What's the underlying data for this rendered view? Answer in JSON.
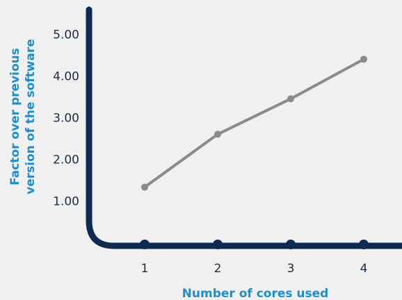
{
  "chart_data": {
    "type": "line",
    "x": [
      1,
      2,
      3,
      4
    ],
    "x_tick_labels": [
      "1",
      "2",
      "3",
      "4"
    ],
    "series": [
      {
        "values": [
          1.35,
          2.62,
          3.47,
          4.42
        ]
      }
    ],
    "xlabel": "Number of cores used",
    "ylabel_lines": [
      "Factor over previous",
      "version of the software"
    ],
    "y_ticks": [
      1,
      2,
      3,
      4,
      5
    ],
    "y_tick_labels": [
      "1.00",
      "2.00",
      "3.00",
      "4.00",
      "5.00"
    ],
    "ylim": [
      0,
      5.7
    ],
    "grid": false,
    "legend": "none",
    "colors": {
      "axis": "#0d2b52",
      "line": "#8a8a8a",
      "title": "#1a8fcf",
      "tick_text": "#1d2d44",
      "background": "#f0f0f0"
    }
  }
}
